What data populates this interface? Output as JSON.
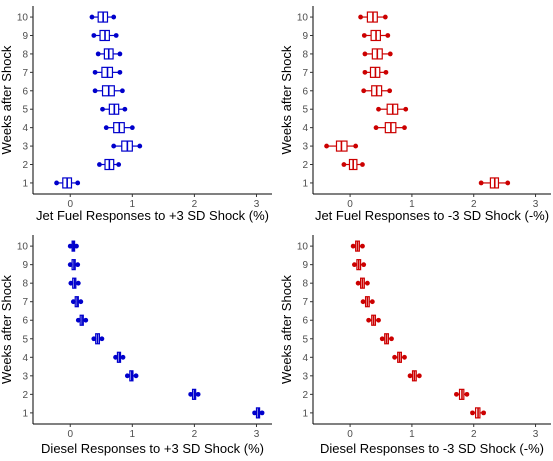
{
  "colors": {
    "blue": "#0000cc",
    "red": "#cc0000",
    "axis": "#000000",
    "tick_text": "#4d4d4d"
  },
  "chart_data": [
    {
      "type": "boxplot",
      "color": "blue",
      "xlabel": "Jet Fuel Responses to +3 SD Shock (%)",
      "ylabel": "Weeks after Shock",
      "xlim": [
        -0.6,
        3.25
      ],
      "ylim": [
        0.4,
        10.6
      ],
      "xticks": [
        0,
        1,
        2,
        3
      ],
      "yticks": [
        1,
        2,
        3,
        4,
        5,
        6,
        7,
        8,
        9,
        10
      ],
      "grid": false,
      "points": [
        {
          "week": 1,
          "whisker_low": -0.22,
          "q1": -0.12,
          "median": -0.05,
          "q3": 0.02,
          "whisker_high": 0.12
        },
        {
          "week": 2,
          "whisker_low": 0.47,
          "q1": 0.56,
          "median": 0.63,
          "q3": 0.7,
          "whisker_high": 0.78
        },
        {
          "week": 3,
          "whisker_low": 0.7,
          "q1": 0.83,
          "median": 0.92,
          "q3": 1.0,
          "whisker_high": 1.12
        },
        {
          "week": 4,
          "whisker_low": 0.58,
          "q1": 0.7,
          "median": 0.79,
          "q3": 0.87,
          "whisker_high": 1.0
        },
        {
          "week": 5,
          "whisker_low": 0.52,
          "q1": 0.63,
          "median": 0.71,
          "q3": 0.78,
          "whisker_high": 0.88
        },
        {
          "week": 6,
          "whisker_low": 0.4,
          "q1": 0.52,
          "median": 0.62,
          "q3": 0.71,
          "whisker_high": 0.84
        },
        {
          "week": 7,
          "whisker_low": 0.4,
          "q1": 0.51,
          "median": 0.6,
          "q3": 0.68,
          "whisker_high": 0.8
        },
        {
          "week": 8,
          "whisker_low": 0.45,
          "q1": 0.55,
          "median": 0.62,
          "q3": 0.69,
          "whisker_high": 0.8
        },
        {
          "week": 9,
          "whisker_low": 0.38,
          "q1": 0.48,
          "median": 0.56,
          "q3": 0.63,
          "whisker_high": 0.74
        },
        {
          "week": 10,
          "whisker_low": 0.35,
          "q1": 0.45,
          "median": 0.53,
          "q3": 0.6,
          "whisker_high": 0.7
        }
      ]
    },
    {
      "type": "boxplot",
      "color": "red",
      "xlabel": "Jet Fuel Responses to -3 SD Shock (-%)",
      "ylabel": "Weeks after Shock",
      "xlim": [
        -0.6,
        3.25
      ],
      "ylim": [
        0.4,
        10.6
      ],
      "xticks": [
        0,
        1,
        2,
        3
      ],
      "yticks": [
        1,
        2,
        3,
        4,
        5,
        6,
        7,
        8,
        9,
        10
      ],
      "grid": false,
      "points": [
        {
          "week": 1,
          "whisker_low": 2.12,
          "q1": 2.27,
          "median": 2.34,
          "q3": 2.4,
          "whisker_high": 2.55
        },
        {
          "week": 2,
          "whisker_low": -0.1,
          "q1": -0.01,
          "median": 0.05,
          "q3": 0.11,
          "whisker_high": 0.2
        },
        {
          "week": 3,
          "whisker_low": -0.38,
          "q1": -0.22,
          "median": -0.14,
          "q3": -0.05,
          "whisker_high": 0.09
        },
        {
          "week": 4,
          "whisker_low": 0.42,
          "q1": 0.57,
          "median": 0.66,
          "q3": 0.74,
          "whisker_high": 0.88
        },
        {
          "week": 5,
          "whisker_low": 0.46,
          "q1": 0.6,
          "median": 0.69,
          "q3": 0.77,
          "whisker_high": 0.9
        },
        {
          "week": 6,
          "whisker_low": 0.22,
          "q1": 0.35,
          "median": 0.43,
          "q3": 0.51,
          "whisker_high": 0.64
        },
        {
          "week": 7,
          "whisker_low": 0.24,
          "q1": 0.33,
          "median": 0.41,
          "q3": 0.48,
          "whisker_high": 0.58
        },
        {
          "week": 8,
          "whisker_low": 0.24,
          "q1": 0.36,
          "median": 0.44,
          "q3": 0.52,
          "whisker_high": 0.65
        },
        {
          "week": 9,
          "whisker_low": 0.23,
          "q1": 0.34,
          "median": 0.42,
          "q3": 0.49,
          "whisker_high": 0.61
        },
        {
          "week": 10,
          "whisker_low": 0.17,
          "q1": 0.28,
          "median": 0.37,
          "q3": 0.44,
          "whisker_high": 0.57
        }
      ]
    },
    {
      "type": "boxplot",
      "color": "blue",
      "xlabel": "Diesel Responses to +3 SD Shock (%)",
      "ylabel": "Weeks after Shock",
      "xlim": [
        -0.6,
        3.25
      ],
      "ylim": [
        0.4,
        10.6
      ],
      "xticks": [
        0,
        1,
        2,
        3
      ],
      "yticks": [
        1,
        2,
        3,
        4,
        5,
        6,
        7,
        8,
        9,
        10
      ],
      "grid": false,
      "points": [
        {
          "week": 1,
          "whisker_low": 2.97,
          "q1": 3.0,
          "median": 3.03,
          "q3": 3.05,
          "whisker_high": 3.09
        },
        {
          "week": 2,
          "whisker_low": 1.94,
          "q1": 1.97,
          "median": 2.0,
          "q3": 2.02,
          "whisker_high": 2.06
        },
        {
          "week": 3,
          "whisker_low": 0.92,
          "q1": 0.96,
          "median": 0.99,
          "q3": 1.01,
          "whisker_high": 1.06
        },
        {
          "week": 4,
          "whisker_low": 0.73,
          "q1": 0.76,
          "median": 0.79,
          "q3": 0.81,
          "whisker_high": 0.85
        },
        {
          "week": 5,
          "whisker_low": 0.38,
          "q1": 0.41,
          "median": 0.44,
          "q3": 0.47,
          "whisker_high": 0.51
        },
        {
          "week": 6,
          "whisker_low": 0.13,
          "q1": 0.16,
          "median": 0.19,
          "q3": 0.21,
          "whisker_high": 0.25
        },
        {
          "week": 7,
          "whisker_low": 0.05,
          "q1": 0.08,
          "median": 0.11,
          "q3": 0.13,
          "whisker_high": 0.17
        },
        {
          "week": 8,
          "whisker_low": 0.01,
          "q1": 0.04,
          "median": 0.07,
          "q3": 0.09,
          "whisker_high": 0.13
        },
        {
          "week": 9,
          "whisker_low": 0.0,
          "q1": 0.03,
          "median": 0.06,
          "q3": 0.08,
          "whisker_high": 0.12
        },
        {
          "week": 10,
          "whisker_low": 0.0,
          "q1": 0.03,
          "median": 0.05,
          "q3": 0.07,
          "whisker_high": 0.1
        }
      ]
    },
    {
      "type": "boxplot",
      "color": "red",
      "xlabel": "Diesel Responses to -3 SD Shock (-%)",
      "ylabel": "Weeks after Shock",
      "xlim": [
        -0.6,
        3.25
      ],
      "ylim": [
        0.4,
        10.6
      ],
      "xticks": [
        0,
        1,
        2,
        3
      ],
      "yticks": [
        1,
        2,
        3,
        4,
        5,
        6,
        7,
        8,
        9,
        10
      ],
      "grid": false,
      "points": [
        {
          "week": 1,
          "whisker_low": 1.98,
          "q1": 2.03,
          "median": 2.07,
          "q3": 2.1,
          "whisker_high": 2.16
        },
        {
          "week": 2,
          "whisker_low": 1.72,
          "q1": 1.77,
          "median": 1.81,
          "q3": 1.84,
          "whisker_high": 1.89
        },
        {
          "week": 3,
          "whisker_low": 0.97,
          "q1": 1.01,
          "median": 1.04,
          "q3": 1.07,
          "whisker_high": 1.12
        },
        {
          "week": 4,
          "whisker_low": 0.72,
          "q1": 0.77,
          "median": 0.8,
          "q3": 0.83,
          "whisker_high": 0.88
        },
        {
          "week": 5,
          "whisker_low": 0.52,
          "q1": 0.56,
          "median": 0.59,
          "q3": 0.62,
          "whisker_high": 0.67
        },
        {
          "week": 6,
          "whisker_low": 0.3,
          "q1": 0.35,
          "median": 0.38,
          "q3": 0.41,
          "whisker_high": 0.46
        },
        {
          "week": 7,
          "whisker_low": 0.21,
          "q1": 0.25,
          "median": 0.28,
          "q3": 0.31,
          "whisker_high": 0.36
        },
        {
          "week": 8,
          "whisker_low": 0.13,
          "q1": 0.17,
          "median": 0.2,
          "q3": 0.23,
          "whisker_high": 0.28
        },
        {
          "week": 9,
          "whisker_low": 0.07,
          "q1": 0.11,
          "median": 0.14,
          "q3": 0.17,
          "whisker_high": 0.22
        },
        {
          "week": 10,
          "whisker_low": 0.05,
          "q1": 0.09,
          "median": 0.12,
          "q3": 0.15,
          "whisker_high": 0.2
        }
      ]
    }
  ]
}
